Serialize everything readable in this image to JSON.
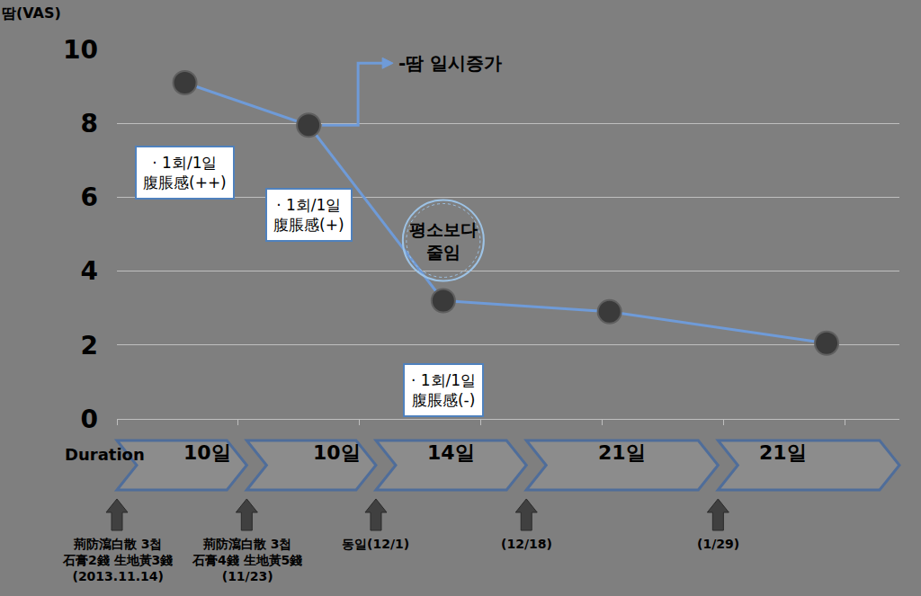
{
  "chart_data": {
    "type": "line",
    "ylabel": "땀(VAS)",
    "x": [
      0.56,
      1.58,
      2.69,
      4.06,
      5.85
    ],
    "values": [
      9.1,
      7.95,
      3.2,
      2.9,
      2.05
    ],
    "color": "#6f9bd8",
    "marker": "circle",
    "xlim": [
      0,
      6.45
    ],
    "xticks": [
      0,
      1,
      2,
      3,
      4,
      5,
      6
    ],
    "ylim": [
      0,
      10
    ],
    "yticks": [
      0,
      2,
      4,
      6,
      8,
      10
    ],
    "grid": true,
    "tick_labels": "y",
    "notes": [
      "· 1회/1일\n腹脹感(++)",
      "· 1회/1일\n腹脹感(+)",
      "· 1회/1일\n腹脹感(-)",
      null,
      null
    ],
    "annotations": [
      {
        "text": "-땀 일시증가",
        "point": 1,
        "marker": "arrow"
      },
      {
        "text": "평소보다\n줄임",
        "point": 2,
        "marker": "circle"
      }
    ],
    "duration_label": "Duration",
    "durations": [
      "10일",
      "10일",
      "14일",
      "21일",
      "21일"
    ],
    "events": [
      "荊防瀉白散 3첩\n石膏2錢 生地黃3錢\n(2013.11.14)",
      "荊防瀉白散 3첩\n石膏4錢 生地黃5錢\n(11/23)",
      "동일(12/1)",
      "(12/18)",
      "(1/29)"
    ]
  }
}
